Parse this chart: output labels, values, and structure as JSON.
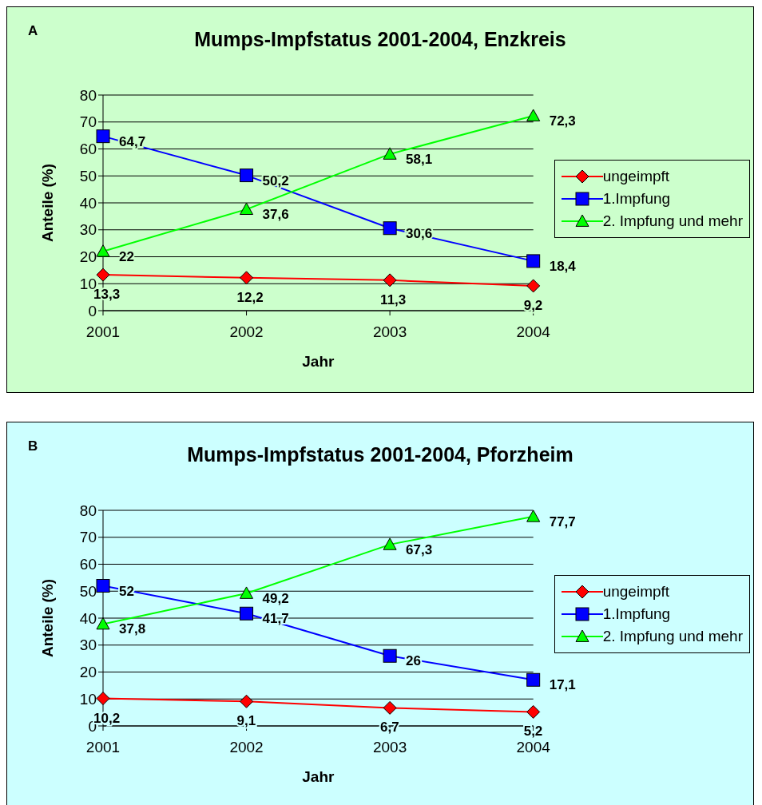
{
  "chart_data": [
    {
      "type": "line",
      "title": "Mumps-Impfstatus 2001-2004, Enzkreis",
      "annotations": [
        "A"
      ],
      "xlabel": "Jahr",
      "ylabel": "Anteile (%)",
      "categories": [
        "2001",
        "2002",
        "2003",
        "2004"
      ],
      "ylim": [
        0,
        80
      ],
      "yticks": [
        0,
        10,
        20,
        30,
        40,
        50,
        60,
        70,
        80
      ],
      "grid": "y",
      "legend": "right",
      "line_style": "solid",
      "series": [
        {
          "name": "ungeimpft",
          "color": "#ff0000",
          "marker": "diamond",
          "values": [
            13.3,
            12.2,
            11.3,
            9.2
          ],
          "value_labels": [
            "13,3",
            "12,2",
            "11,3",
            "9,2"
          ]
        },
        {
          "name": "1.Impfung",
          "color": "#0000ff",
          "marker": "square",
          "values": [
            64.7,
            50.2,
            30.6,
            18.4
          ],
          "value_labels": [
            "64,7",
            "50,2",
            "30,6",
            "18,4"
          ]
        },
        {
          "name": "2. Impfung und mehr",
          "color": "#00ff00",
          "marker": "triangle",
          "values": [
            22,
            37.6,
            58.1,
            72.3
          ],
          "value_labels": [
            "22",
            "37,6",
            "58,1",
            "72,3"
          ]
        }
      ]
    },
    {
      "type": "line",
      "title": "Mumps-Impfstatus 2001-2004, Pforzheim",
      "annotations": [
        "B"
      ],
      "xlabel": "Jahr",
      "ylabel": "Anteile (%)",
      "categories": [
        "2001",
        "2002",
        "2003",
        "2004"
      ],
      "ylim": [
        0,
        80
      ],
      "yticks": [
        0,
        10,
        20,
        30,
        40,
        50,
        60,
        70,
        80
      ],
      "grid": "y",
      "legend": "right",
      "line_style": "solid",
      "series": [
        {
          "name": "ungeimpft",
          "color": "#ff0000",
          "marker": "diamond",
          "values": [
            10.2,
            9.1,
            6.7,
            5.2
          ],
          "value_labels": [
            "10,2",
            "9,1",
            "6,7",
            "5,2"
          ]
        },
        {
          "name": "1.Impfung",
          "color": "#0000ff",
          "marker": "square",
          "values": [
            52,
            41.7,
            26,
            17.1
          ],
          "value_labels": [
            "52",
            "41,7",
            "26",
            "17,1"
          ]
        },
        {
          "name": "2. Impfung und mehr",
          "color": "#00ff00",
          "marker": "triangle",
          "values": [
            37.8,
            49.2,
            67.3,
            77.7
          ],
          "value_labels": [
            "37,8",
            "49,2",
            "67,3",
            "77,7"
          ]
        }
      ]
    }
  ]
}
